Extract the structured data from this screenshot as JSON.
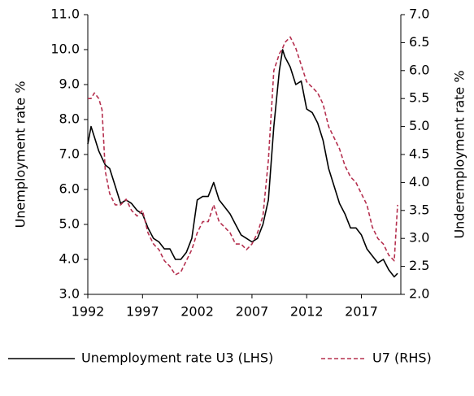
{
  "chart_data": {
    "type": "line",
    "ylabel": "Unemployment rate %",
    "y2label": "Underemployment rate %",
    "x": [
      1992.0,
      1992.3,
      1992.6,
      1993.0,
      1993.3,
      1993.6,
      1994.0,
      1994.5,
      1995.0,
      1995.5,
      1996.0,
      1996.5,
      1997.0,
      1997.5,
      1998.0,
      1998.5,
      1999.0,
      1999.5,
      2000.0,
      2000.5,
      2001.0,
      2001.5,
      2002.0,
      2002.5,
      2003.0,
      2003.5,
      2004.0,
      2004.5,
      2005.0,
      2005.5,
      2006.0,
      2006.5,
      2007.0,
      2007.5,
      2008.0,
      2008.5,
      2009.0,
      2009.5,
      2009.8,
      2010.0,
      2010.5,
      2011.0,
      2011.5,
      2012.0,
      2012.5,
      2013.0,
      2013.5,
      2014.0,
      2014.5,
      2015.0,
      2015.5,
      2016.0,
      2016.5,
      2017.0,
      2017.5,
      2018.0,
      2018.5,
      2019.0,
      2019.5,
      2020.0,
      2020.3
    ],
    "series": [
      {
        "name": "Unemployment rate U3 (LHS)",
        "color": "#000000",
        "dashed": false,
        "axis": "y",
        "values": [
          7.3,
          7.8,
          7.5,
          7.1,
          6.9,
          6.7,
          6.6,
          6.1,
          5.6,
          5.7,
          5.6,
          5.4,
          5.3,
          4.9,
          4.6,
          4.5,
          4.3,
          4.3,
          4.0,
          4.0,
          4.2,
          4.6,
          5.7,
          5.8,
          5.8,
          6.2,
          5.7,
          5.5,
          5.3,
          5.0,
          4.7,
          4.6,
          4.5,
          4.6,
          5.0,
          5.7,
          7.8,
          9.4,
          10.0,
          9.8,
          9.5,
          9.0,
          9.1,
          8.3,
          8.2,
          7.9,
          7.4,
          6.6,
          6.1,
          5.6,
          5.3,
          4.9,
          4.9,
          4.7,
          4.3,
          4.1,
          3.9,
          4.0,
          3.7,
          3.5,
          3.6
        ]
      },
      {
        "name": "U7 (RHS)",
        "color": "#b5304f",
        "dashed": true,
        "axis": "y2",
        "values": [
          5.5,
          5.5,
          5.6,
          5.5,
          5.3,
          4.2,
          3.8,
          3.6,
          3.6,
          3.7,
          3.5,
          3.4,
          3.5,
          3.1,
          2.9,
          2.8,
          2.6,
          2.5,
          2.35,
          2.4,
          2.6,
          2.8,
          3.1,
          3.3,
          3.3,
          3.6,
          3.3,
          3.2,
          3.1,
          2.9,
          2.9,
          2.8,
          2.9,
          3.1,
          3.4,
          4.4,
          6.0,
          6.3,
          6.4,
          6.5,
          6.6,
          6.4,
          6.1,
          5.8,
          5.7,
          5.6,
          5.4,
          5.0,
          4.8,
          4.6,
          4.3,
          4.1,
          4.0,
          3.8,
          3.6,
          3.2,
          3.0,
          2.9,
          2.7,
          2.6,
          3.6
        ]
      }
    ],
    "xlim": [
      1992,
      2020.6
    ],
    "xticks": [
      1992,
      1997,
      2002,
      2007,
      2012,
      2017
    ],
    "ylim": [
      3,
      11
    ],
    "yticks": [
      {
        "value": 3,
        "label": "3.0"
      },
      {
        "value": 4,
        "label": "4.0"
      },
      {
        "value": 5,
        "label": "5.0"
      },
      {
        "value": 6,
        "label": "6.0"
      },
      {
        "value": 7,
        "label": "7.0"
      },
      {
        "value": 8,
        "label": "8.0"
      },
      {
        "value": 9,
        "label": "9.0"
      },
      {
        "value": 10,
        "label": "10.0"
      },
      {
        "value": 11,
        "label": "11.0"
      }
    ],
    "y2lim": [
      2,
      7
    ],
    "y2ticks": [
      {
        "value": 2,
        "label": "2.0"
      },
      {
        "value": 2.5,
        "label": "2.5"
      },
      {
        "value": 3,
        "label": "3.0"
      },
      {
        "value": 3.5,
        "label": "3.5"
      },
      {
        "value": 4,
        "label": "4.0"
      },
      {
        "value": 4.5,
        "label": "4.5"
      },
      {
        "value": 5,
        "label": "5.0"
      },
      {
        "value": 5.5,
        "label": "5.5"
      },
      {
        "value": 6,
        "label": "6.0"
      },
      {
        "value": 6.5,
        "label": "6.5"
      },
      {
        "value": 7,
        "label": "7.0"
      }
    ],
    "grid": false
  }
}
